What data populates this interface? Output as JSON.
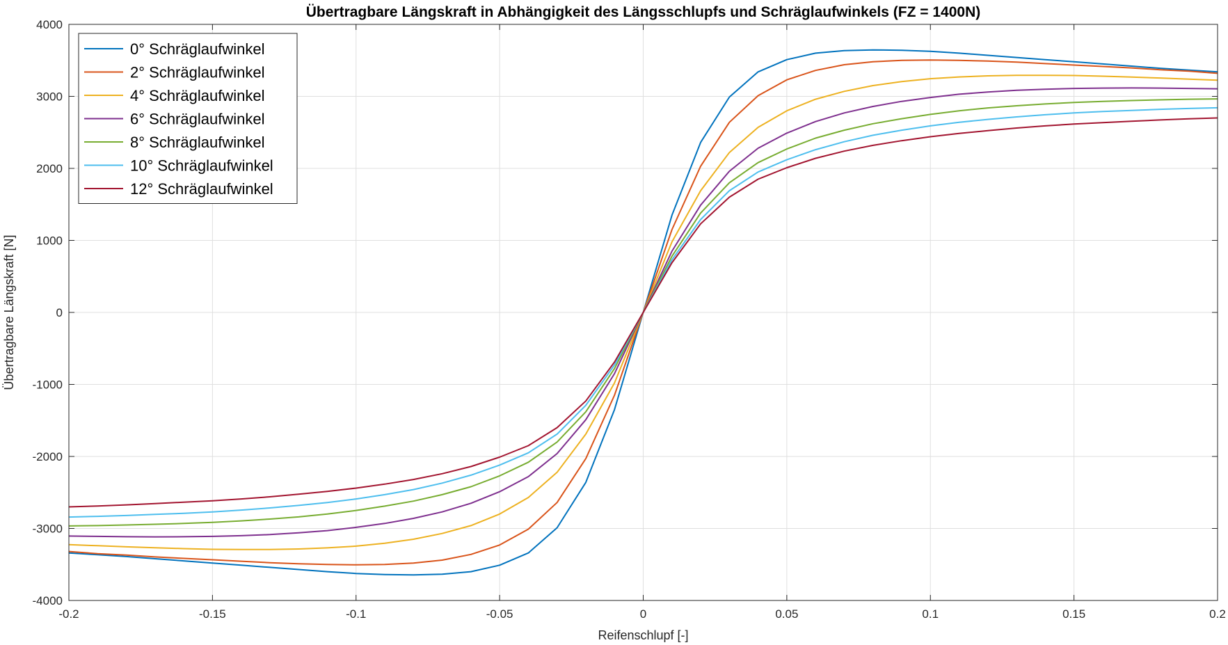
{
  "chart_data": {
    "type": "line",
    "title": "Übertragbare Längskraft in Abhängigkeit des Längsschlupfs und Schräglaufwinkels (FZ = 1400N)",
    "xlabel": "Reifenschlupf [-]",
    "ylabel": "Übertragbare Längskraft [N]",
    "xlim": [
      -0.2,
      0.2
    ],
    "ylim": [
      -4000,
      4000
    ],
    "xticks": [
      -0.2,
      -0.15,
      -0.1,
      -0.05,
      0,
      0.05,
      0.1,
      0.15,
      0.2
    ],
    "xtick_labels": [
      "-0.2",
      "-0.15",
      "-0.1",
      "-0.05",
      "0",
      "0.05",
      "0.1",
      "0.15",
      "0.2"
    ],
    "yticks": [
      -4000,
      -3000,
      -2000,
      -1000,
      0,
      1000,
      2000,
      3000,
      4000
    ],
    "ytick_labels": [
      "-4000",
      "-3000",
      "-2000",
      "-1000",
      "0",
      "1000",
      "2000",
      "3000",
      "4000"
    ],
    "grid": true,
    "legend_position": "top-left",
    "x": [
      0,
      0.01,
      0.02,
      0.03,
      0.04,
      0.05,
      0.06,
      0.07,
      0.08,
      0.09,
      0.1,
      0.11,
      0.12,
      0.13,
      0.14,
      0.15,
      0.16,
      0.17,
      0.18,
      0.19,
      0.2
    ],
    "series": [
      {
        "name": "0° Schräglaufwinkel",
        "color": "#0072BD",
        "values": [
          0,
          1350,
          2360,
          2990,
          3340,
          3510,
          3600,
          3635,
          3645,
          3640,
          3625,
          3600,
          3570,
          3540,
          3510,
          3480,
          3450,
          3420,
          3390,
          3365,
          3340
        ]
      },
      {
        "name": "2° Schräglaufwinkel",
        "color": "#D95319",
        "values": [
          0,
          1150,
          2030,
          2640,
          3010,
          3230,
          3360,
          3440,
          3480,
          3500,
          3505,
          3500,
          3490,
          3475,
          3455,
          3435,
          3415,
          3395,
          3370,
          3350,
          3320
        ]
      },
      {
        "name": "4° Schräglaufwinkel",
        "color": "#EDB120",
        "values": [
          0,
          980,
          1690,
          2220,
          2570,
          2800,
          2960,
          3070,
          3150,
          3205,
          3245,
          3270,
          3285,
          3292,
          3293,
          3290,
          3280,
          3268,
          3255,
          3240,
          3225
        ]
      },
      {
        "name": "6° Schräglaufwinkel",
        "color": "#7E2F8E",
        "values": [
          0,
          850,
          1490,
          1960,
          2280,
          2490,
          2650,
          2770,
          2860,
          2930,
          2985,
          3030,
          3060,
          3085,
          3100,
          3110,
          3115,
          3117,
          3115,
          3110,
          3105
        ]
      },
      {
        "name": "8° Schräglaufwinkel",
        "color": "#77AC30",
        "values": [
          0,
          780,
          1380,
          1800,
          2080,
          2270,
          2420,
          2530,
          2620,
          2690,
          2750,
          2800,
          2840,
          2870,
          2895,
          2915,
          2930,
          2942,
          2952,
          2960,
          2965
        ]
      },
      {
        "name": "10° Schräglaufwinkel",
        "color": "#4DBEEE",
        "values": [
          0,
          730,
          1290,
          1690,
          1950,
          2120,
          2260,
          2370,
          2460,
          2530,
          2590,
          2640,
          2680,
          2715,
          2745,
          2770,
          2790,
          2805,
          2820,
          2832,
          2842
        ]
      },
      {
        "name": "12° Schräglaufwinkel",
        "color": "#A2142F",
        "values": [
          0,
          690,
          1230,
          1600,
          1850,
          2010,
          2140,
          2240,
          2320,
          2385,
          2440,
          2485,
          2525,
          2560,
          2590,
          2615,
          2635,
          2655,
          2672,
          2688,
          2700
        ]
      }
    ]
  }
}
